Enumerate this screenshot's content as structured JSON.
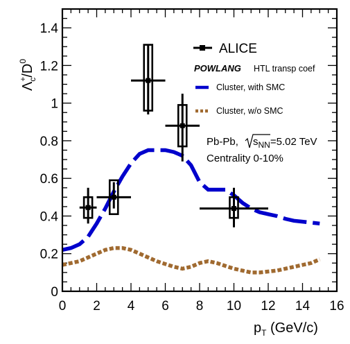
{
  "chart_data": {
    "type": "line",
    "xlabel": {
      "main": "p",
      "sub": "T",
      "rest": " (GeV/c)"
    },
    "ylabel": {
      "main": "Λ",
      "sup": "+",
      "sub": "c",
      "rest": "/D",
      "sup2": "0"
    },
    "xlim": [
      0,
      16
    ],
    "ylim": [
      0,
      1.5
    ],
    "x_ticks": [
      "0",
      "2",
      "4",
      "6",
      "8",
      "10",
      "12",
      "14",
      "16"
    ],
    "y_ticks": [
      "0",
      "0.2",
      "0.4",
      "0.6",
      "0.8",
      "1",
      "1.2",
      "1.4"
    ],
    "grid": false,
    "legend_position": "top-right",
    "legend": {
      "alice": "ALICE",
      "model_name": "POWLANG",
      "model_desc": "HTL transp coef",
      "smc": "Cluster, with SMC",
      "wo_smc": "Cluster, w/o SMC"
    },
    "annotations": {
      "system_prefix": "Pb-Pb, ",
      "sqrt_s": "s",
      "sqrt_sub": "NN",
      "energy": "=5.02 TeV",
      "centrality": "Centrality 0-10%"
    },
    "series": [
      {
        "name": "ALICE",
        "kind": "points",
        "color": "#000000",
        "points": [
          {
            "x": 1.5,
            "y": 0.445,
            "xlo": 1.0,
            "xhi": 2.0,
            "stat_lo": 0.36,
            "stat_hi": 0.55,
            "sys_lo": 0.39,
            "sys_hi": 0.5
          },
          {
            "x": 3.0,
            "y": 0.5,
            "xlo": 2.0,
            "xhi": 4.0,
            "stat_lo": 0.44,
            "stat_hi": 0.58,
            "sys_lo": 0.41,
            "sys_hi": 0.59
          },
          {
            "x": 5.0,
            "y": 1.12,
            "xlo": 4.0,
            "xhi": 6.0,
            "stat_lo": 0.94,
            "stat_hi": 1.31,
            "sys_lo": 0.96,
            "sys_hi": 1.31
          },
          {
            "x": 7.0,
            "y": 0.88,
            "xlo": 6.0,
            "xhi": 8.0,
            "stat_lo": 0.69,
            "stat_hi": 1.05,
            "sys_lo": 0.77,
            "sys_hi": 0.99
          },
          {
            "x": 10.0,
            "y": 0.44,
            "xlo": 8.0,
            "xhi": 12.0,
            "stat_lo": 0.34,
            "stat_hi": 0.55,
            "sys_lo": 0.39,
            "sys_hi": 0.5
          }
        ]
      },
      {
        "name": "Cluster, with SMC",
        "kind": "dashed",
        "color": "#0000cc",
        "x": [
          0.0,
          0.5,
          1.0,
          1.5,
          2.0,
          2.5,
          3.0,
          3.5,
          4.0,
          4.5,
          5.0,
          5.5,
          6.0,
          6.5,
          7.0,
          7.5,
          8.0,
          8.5,
          9.0,
          9.5,
          10.0,
          10.5,
          11.0,
          11.5,
          12.0,
          12.5,
          13.0,
          13.5,
          14.0,
          14.5,
          15.0
        ],
        "y": [
          0.22,
          0.23,
          0.25,
          0.29,
          0.36,
          0.44,
          0.53,
          0.61,
          0.68,
          0.73,
          0.75,
          0.75,
          0.75,
          0.74,
          0.72,
          0.67,
          0.58,
          0.54,
          0.54,
          0.54,
          0.51,
          0.47,
          0.44,
          0.42,
          0.41,
          0.4,
          0.385,
          0.375,
          0.37,
          0.365,
          0.36
        ]
      },
      {
        "name": "Cluster, w/o SMC",
        "kind": "dotted",
        "color": "#a06a30",
        "x": [
          0.0,
          0.5,
          1.0,
          1.5,
          2.0,
          2.5,
          3.0,
          3.5,
          4.0,
          4.5,
          5.0,
          5.5,
          6.0,
          6.5,
          7.0,
          7.5,
          8.0,
          8.5,
          9.0,
          9.5,
          10.0,
          10.5,
          11.0,
          11.5,
          12.0,
          12.5,
          13.0,
          13.5,
          14.0,
          14.5,
          15.0
        ],
        "y": [
          0.14,
          0.15,
          0.16,
          0.18,
          0.2,
          0.22,
          0.23,
          0.23,
          0.22,
          0.2,
          0.18,
          0.16,
          0.145,
          0.13,
          0.12,
          0.13,
          0.15,
          0.16,
          0.15,
          0.135,
          0.12,
          0.11,
          0.1,
          0.1,
          0.105,
          0.11,
          0.12,
          0.13,
          0.14,
          0.15,
          0.17
        ]
      }
    ]
  }
}
